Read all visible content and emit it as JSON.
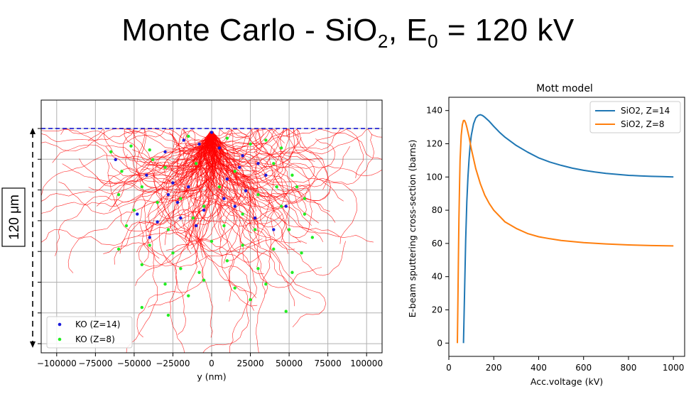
{
  "slide": {
    "title_part1": "Monte Carlo - SiO",
    "title_sub1": "2",
    "title_part2": ", E",
    "title_sub2": "0",
    "title_part3": " = 120 kV"
  },
  "scale_bar": {
    "label": "120 μm"
  },
  "chart_data": [
    {
      "type": "scatter",
      "title": "",
      "xlabel": "y (nm)",
      "ylabel": "",
      "xlim": [
        -110000,
        110000
      ],
      "xticks": [
        -100000,
        -75000,
        -50000,
        -25000,
        0,
        25000,
        50000,
        75000,
        100000
      ],
      "xtick_labels": [
        "−100000",
        "−75000",
        "−50000",
        "−25000",
        "0",
        "25000",
        "50000",
        "75000",
        "100000"
      ],
      "grid": true,
      "surface_line": {
        "style": "dashed",
        "color": "#0000cc"
      },
      "trajectories": {
        "color": "#ff0000",
        "description": "electron trajectories fanning out from surface entry point at y = 0"
      },
      "legend": {
        "placement": "lower-left"
      },
      "series": [
        {
          "name": "KO (Z=14)",
          "color": "#1a1adb",
          "points": [
            [
              -62000,
              0.16
            ],
            [
              -30000,
              0.12
            ],
            [
              -18000,
              0.06
            ],
            [
              -8000,
              0.08
            ],
            [
              5000,
              0.1
            ],
            [
              20000,
              0.14
            ],
            [
              30000,
              0.18
            ],
            [
              -42000,
              0.24
            ],
            [
              -25000,
              0.28
            ],
            [
              -15000,
              0.3
            ],
            [
              10000,
              0.26
            ],
            [
              35000,
              0.24
            ],
            [
              -28000,
              0.34
            ],
            [
              22000,
              0.32
            ],
            [
              -5000,
              0.42
            ],
            [
              -48000,
              0.44
            ],
            [
              -20000,
              0.46
            ],
            [
              15000,
              0.4
            ],
            [
              48000,
              0.4
            ],
            [
              -35000,
              0.48
            ],
            [
              -10000,
              0.5
            ],
            [
              28000,
              0.46
            ],
            [
              40000,
              0.52
            ],
            [
              -40000,
              0.56
            ],
            [
              0,
              0.02
            ],
            [
              -22000,
              0.38
            ],
            [
              8000,
              0.36
            ],
            [
              18000,
              0.2
            ]
          ]
        },
        {
          "name": "KO (Z=8)",
          "color": "#22ee22",
          "points": [
            [
              -65000,
              0.12
            ],
            [
              -52000,
              0.09
            ],
            [
              -40000,
              0.11
            ],
            [
              -15000,
              0.04
            ],
            [
              10000,
              0.05
            ],
            [
              25000,
              0.08
            ],
            [
              35000,
              0.06
            ],
            [
              45000,
              0.1
            ],
            [
              -58000,
              0.22
            ],
            [
              -30000,
              0.2
            ],
            [
              -10000,
              0.18
            ],
            [
              15000,
              0.22
            ],
            [
              40000,
              0.18
            ],
            [
              52000,
              0.24
            ],
            [
              -60000,
              0.34
            ],
            [
              -45000,
              0.3
            ],
            [
              -20000,
              0.36
            ],
            [
              5000,
              0.3
            ],
            [
              30000,
              0.34
            ],
            [
              55000,
              0.3
            ],
            [
              -50000,
              0.42
            ],
            [
              -35000,
              0.38
            ],
            [
              -5000,
              0.4
            ],
            [
              20000,
              0.44
            ],
            [
              45000,
              0.4
            ],
            [
              60000,
              0.44
            ],
            [
              -55000,
              0.5
            ],
            [
              -28000,
              0.52
            ],
            [
              -12000,
              0.46
            ],
            [
              8000,
              0.5
            ],
            [
              28000,
              0.52
            ],
            [
              50000,
              0.52
            ],
            [
              65000,
              0.56
            ],
            [
              -60000,
              0.62
            ],
            [
              -40000,
              0.6
            ],
            [
              -25000,
              0.64
            ],
            [
              0,
              0.58
            ],
            [
              20000,
              0.6
            ],
            [
              40000,
              0.62
            ],
            [
              58000,
              0.64
            ],
            [
              -45000,
              0.7
            ],
            [
              -20000,
              0.72
            ],
            [
              10000,
              0.68
            ],
            [
              30000,
              0.72
            ],
            [
              52000,
              0.74
            ],
            [
              -30000,
              0.8
            ],
            [
              -5000,
              0.78
            ],
            [
              15000,
              0.82
            ],
            [
              35000,
              0.8
            ],
            [
              -15000,
              0.86
            ],
            [
              25000,
              0.88
            ],
            [
              -45000,
              0.92
            ],
            [
              -28000,
              0.96
            ],
            [
              48000,
              0.94
            ],
            [
              -8000,
              0.74
            ],
            [
              42000,
              0.3
            ],
            [
              -38000,
              0.16
            ],
            [
              60000,
              0.36
            ]
          ]
        }
      ]
    },
    {
      "type": "line",
      "title": "Mott model",
      "xlabel": "Acc.voltage (kV)",
      "ylabel": "E-beam sputtering cross-section (barns)",
      "xlim": [
        0,
        1050
      ],
      "ylim": [
        -8,
        148
      ],
      "xticks": [
        0,
        200,
        400,
        600,
        800,
        1000
      ],
      "yticks": [
        0,
        20,
        40,
        60,
        80,
        100,
        120,
        140
      ],
      "grid": false,
      "legend": {
        "placement": "top-right"
      },
      "series": [
        {
          "name": "SiO2, Z=14",
          "color": "#1f77b4",
          "x": [
            65,
            70,
            75,
            80,
            85,
            90,
            95,
            100,
            110,
            120,
            130,
            140,
            150,
            160,
            180,
            200,
            225,
            250,
            300,
            350,
            400,
            450,
            500,
            550,
            600,
            650,
            700,
            750,
            800,
            850,
            900,
            950,
            1000
          ],
          "y": [
            0,
            30,
            62,
            85,
            100,
            111,
            119,
            125,
            132,
            135.5,
            137,
            137.5,
            137,
            136,
            133.5,
            130.5,
            127,
            124,
            119,
            115,
            111.5,
            109,
            107,
            105.3,
            104,
            103,
            102.2,
            101.6,
            101,
            100.7,
            100.4,
            100.2,
            100
          ]
        },
        {
          "name": "SiO2, Z=8",
          "color": "#ff7f0e",
          "x": [
            38,
            40,
            42,
            45,
            48,
            50,
            55,
            60,
            65,
            70,
            75,
            80,
            90,
            100,
            120,
            140,
            160,
            180,
            200,
            250,
            300,
            350,
            400,
            450,
            500,
            600,
            700,
            800,
            900,
            1000
          ],
          "y": [
            0,
            20,
            45,
            75,
            98,
            110,
            125,
            131.5,
            134,
            134,
            132.5,
            130,
            124,
            117,
            105,
            96,
            89,
            84,
            80,
            73,
            69,
            66,
            64,
            62.8,
            61.8,
            60.5,
            59.7,
            59.1,
            58.7,
            58.5
          ]
        }
      ]
    }
  ]
}
